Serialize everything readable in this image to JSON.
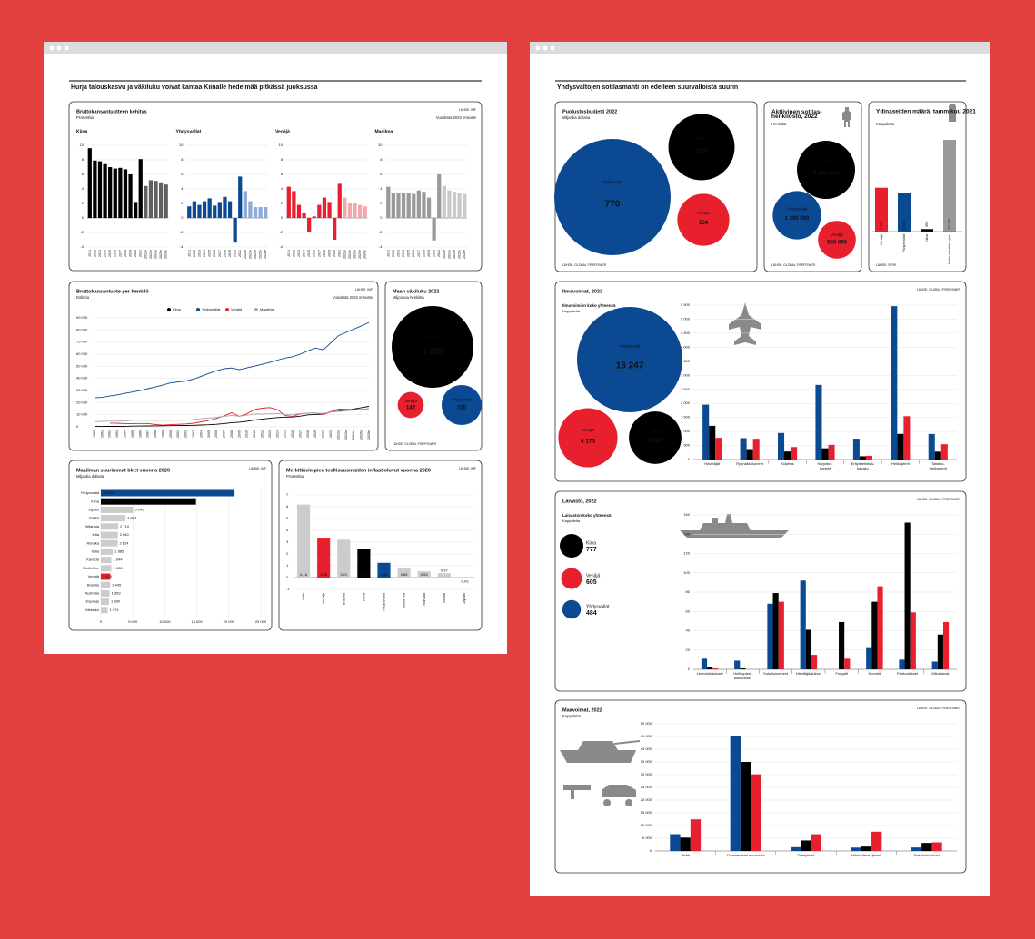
{
  "pages": [
    {
      "title": "Hurja talouskasvu ja väkiluku voivat kantaa Kiinalle hedelmää pitkässä juoksussa"
    },
    {
      "title": "Yhdysvaltojen sotilasmahti on edelleen suurvalloista suurin"
    }
  ],
  "chart_data": [
    {
      "type": "small-multiples-bar",
      "title": "Bruttokansantuotteen kehitys",
      "subtitle": "Prosenttia",
      "source": "LÄHDE: IMF",
      "note": "Vuodesta 2022 ennuste",
      "categories": [
        "2011",
        "2012",
        "2013",
        "2014",
        "2015",
        "2016",
        "2017",
        "2018",
        "2019",
        "2020",
        "2021",
        "2022e",
        "2023e",
        "2024e",
        "2025e",
        "2026e"
      ],
      "series": [
        {
          "name": "Kiina",
          "colors": [
            "#000000",
            "#000000",
            "#000000",
            "#000000",
            "#000000",
            "#000000",
            "#000000",
            "#000000",
            "#000000",
            "#000000",
            "#000000",
            "#606060",
            "#606060",
            "#606060",
            "#606060",
            "#606060"
          ],
          "values": [
            9.6,
            7.9,
            7.8,
            7.4,
            7.0,
            6.8,
            6.9,
            6.7,
            6.0,
            2.2,
            8.1,
            4.4,
            5.2,
            5.1,
            4.9,
            4.6
          ]
        },
        {
          "name": "Yhdysvallat",
          "colors": [
            "#0b4a92",
            "#0b4a92",
            "#0b4a92",
            "#0b4a92",
            "#0b4a92",
            "#0b4a92",
            "#0b4a92",
            "#0b4a92",
            "#0b4a92",
            "#0b4a92",
            "#0b4a92",
            "#8eaad6",
            "#8eaad6",
            "#8eaad6",
            "#8eaad6",
            "#8eaad6"
          ],
          "values": [
            1.6,
            2.3,
            1.8,
            2.3,
            2.7,
            1.7,
            2.2,
            2.9,
            2.3,
            -3.4,
            5.7,
            3.7,
            2.3,
            1.5,
            1.5,
            1.5
          ]
        },
        {
          "name": "Venäjä",
          "colors": [
            "#e8202e",
            "#e8202e",
            "#e8202e",
            "#e8202e",
            "#e8202e",
            "#e8202e",
            "#e8202e",
            "#e8202e",
            "#e8202e",
            "#e8202e",
            "#e8202e",
            "#f3a6ad",
            "#f3a6ad",
            "#f3a6ad",
            "#f3a6ad",
            "#f3a6ad"
          ],
          "values": [
            4.3,
            3.7,
            1.8,
            0.7,
            -2.0,
            0.2,
            1.8,
            2.8,
            2.2,
            -3.0,
            4.7,
            2.8,
            2.1,
            2.1,
            1.8,
            1.6
          ]
        },
        {
          "name": "Maailma",
          "colors": [
            "#9a9a9a",
            "#9a9a9a",
            "#9a9a9a",
            "#9a9a9a",
            "#9a9a9a",
            "#9a9a9a",
            "#9a9a9a",
            "#9a9a9a",
            "#9a9a9a",
            "#9a9a9a",
            "#9a9a9a",
            "#c9c9c9",
            "#c9c9c9",
            "#c9c9c9",
            "#c9c9c9",
            "#c9c9c9"
          ],
          "values": [
            4.3,
            3.5,
            3.4,
            3.5,
            3.4,
            3.3,
            3.8,
            3.6,
            2.8,
            -3.1,
            6.0,
            4.4,
            3.8,
            3.6,
            3.4,
            3.3
          ]
        }
      ],
      "ylim": [
        -4,
        10
      ],
      "yticks": [
        -4,
        -2,
        0,
        2,
        4,
        6,
        8,
        10
      ]
    },
    {
      "type": "line",
      "title": "Bruttokansantuote per henkilö",
      "subtitle": "Dollaria",
      "source": "LÄHDE: IMF",
      "note": "Vuodesta 2022 ennuste",
      "categories": [
        "1990",
        "1991",
        "1992",
        "1993",
        "1994",
        "1995",
        "1996",
        "1997",
        "1998",
        "1999",
        "2000",
        "2001",
        "2002",
        "2003",
        "2004",
        "2005",
        "2006",
        "2007",
        "2008",
        "2009",
        "2010",
        "2011",
        "2012",
        "2013",
        "2014",
        "2015",
        "2016",
        "2017",
        "2018",
        "2019",
        "2020",
        "2021",
        "2022e",
        "2023e",
        "2024e",
        "2025e",
        "2026e"
      ],
      "series": [
        {
          "name": "Kiina",
          "color": "#000000",
          "values": [
            320,
            330,
            370,
            380,
            470,
            610,
            710,
            780,
            830,
            870,
            960,
            1050,
            1150,
            1290,
            1510,
            1750,
            2100,
            2700,
            3470,
            3830,
            4550,
            5610,
            6300,
            7020,
            7640,
            8030,
            8080,
            8820,
            9900,
            10170,
            10500,
            12560,
            12990,
            13720,
            14700,
            15800,
            16900
          ]
        },
        {
          "name": "Yhdysvallat",
          "color": "#0b4a92",
          "values": [
            23900,
            24300,
            25400,
            26400,
            27700,
            28700,
            29900,
            31500,
            32900,
            34600,
            36300,
            37100,
            37900,
            39400,
            41700,
            44100,
            46300,
            48000,
            48600,
            47200,
            48700,
            50100,
            51700,
            53200,
            55100,
            56800,
            57900,
            60000,
            62800,
            65100,
            63500,
            69300,
            75200,
            78000,
            80600,
            83300,
            86200
          ]
        },
        {
          "name": "Venäjä",
          "color": "#e8202e",
          "values": [
            null,
            null,
            3100,
            3000,
            2700,
            2700,
            2800,
            2800,
            1900,
            1400,
            1800,
            2100,
            2400,
            3000,
            4100,
            5300,
            6900,
            9100,
            11600,
            8600,
            10700,
            14300,
            15400,
            15900,
            14100,
            9300,
            8700,
            10700,
            11300,
            11500,
            10200,
            12200,
            14700,
            14500,
            14300,
            14500,
            14800
          ]
        },
        {
          "name": "Maailma",
          "color": "#aaaaaa",
          "values": [
            4300,
            4500,
            4700,
            4700,
            4900,
            5400,
            5500,
            5400,
            5300,
            5400,
            5500,
            5400,
            5500,
            6100,
            6800,
            7300,
            7800,
            8700,
            9400,
            8800,
            9600,
            10500,
            10600,
            10800,
            11000,
            10300,
            10300,
            10900,
            11400,
            11400,
            11000,
            12200,
            12700,
            13200,
            13800,
            14400,
            15000
          ]
        }
      ],
      "ylim": [
        0,
        90000
      ],
      "yticks": [
        0,
        {
          "value": 10000,
          "label": "10 000"
        },
        {
          "value": 20000,
          "label": "20 000"
        },
        {
          "value": 30000,
          "label": "30 000"
        },
        {
          "value": 40000,
          "label": "40 000"
        },
        {
          "value": 50000,
          "label": "50 000"
        },
        {
          "value": 60000,
          "label": "60 000"
        },
        {
          "value": 70000,
          "label": "70 000"
        },
        {
          "value": 80000,
          "label": "80 000"
        },
        {
          "value": 90000,
          "label": "90 000"
        }
      ]
    },
    {
      "type": "bubble",
      "title": "Maan väkiluku 2022",
      "subtitle": "Miljoonaa henkilöä",
      "source": "LÄHDE: GLOBAL FIREPOWER",
      "categories": [
        "Kiina",
        "Venäjä",
        "Yhdysvallat"
      ],
      "values": [
        1398,
        142,
        335
      ],
      "value_labels": [
        "1 398",
        "142",
        "335"
      ],
      "colors": [
        "#000000",
        "#e8202e",
        "#0b4a92"
      ]
    },
    {
      "type": "hbar",
      "title": "Maailman suurimmat bkt:t vuonna 2020",
      "subtitle": "Miljardia dollaria",
      "source": "LÄHDE: IMF",
      "categories": [
        "Yhdysvallat",
        "Kiina",
        "Japani",
        "Saksa",
        "Britannia",
        "Intia",
        "Ranska",
        "Italia",
        "Kanada",
        "Etelä-Kor.",
        "Venäjä",
        "Brasilia",
        "Australia",
        "Espanja",
        "Meksiko"
      ],
      "values": [
        20894,
        14867,
        5045,
        3843,
        2710,
        2660,
        2624,
        1885,
        1644,
        1638,
        1479,
        1445,
        1359,
        1280,
        1074
      ],
      "value_labels": [
        "20 894",
        "14 867",
        "5 045",
        "3 843",
        "2 710",
        "2 660",
        "2 624",
        "1 885",
        "1 644",
        "1 638",
        "1 479",
        "1 445",
        "1 359",
        "1 280",
        "1 074"
      ],
      "colors": [
        "#0b4a92",
        "#000000",
        "#cccccc",
        "#cccccc",
        "#cccccc",
        "#cccccc",
        "#cccccc",
        "#cccccc",
        "#cccccc",
        "#cccccc",
        "#e8202e",
        "#cccccc",
        "#cccccc",
        "#cccccc",
        "#cccccc"
      ],
      "xlim": [
        0,
        25000
      ],
      "xticks": [
        0,
        {
          "value": 5000,
          "label": "5 000"
        },
        {
          "value": 10000,
          "label": "10 000"
        },
        {
          "value": 15000,
          "label": "15 000"
        },
        {
          "value": 20000,
          "label": "20 000"
        },
        {
          "value": 25000,
          "label": "25 000"
        }
      ]
    },
    {
      "type": "bar",
      "title": "Merkittävimpien teollisuusmaiden inflaatioluvut vuonna 2020",
      "subtitle": "Prosenttia",
      "source": "LÄHDE: IMF",
      "categories": [
        "Intia",
        "Venäjä",
        "Brasilia",
        "Kiina",
        "Yhdysvallat",
        "Britannia",
        "Ranska",
        "Saksa",
        "Japani"
      ],
      "values": [
        6.18,
        3.38,
        3.21,
        2.39,
        1.25,
        0.85,
        0.53,
        0.37,
        -0.03
      ],
      "value_labels": [
        "6,18",
        "3,38",
        "3,21",
        "2,39",
        "1,25",
        "0,85",
        "0,53",
        "0,37",
        "-0,03"
      ],
      "colors": [
        "#cccccc",
        "#e8202e",
        "#cccccc",
        "#000000",
        "#0b4a92",
        "#cccccc",
        "#cccccc",
        "#cccccc",
        "#cccccc"
      ],
      "ylim": [
        -1,
        7
      ],
      "yticks": [
        -1,
        0,
        1,
        2,
        3,
        4,
        5,
        6,
        7
      ]
    },
    {
      "type": "bubble",
      "title": "Puolustusbudjetti 2022",
      "subtitle": "Miljardia dollaria",
      "source": "LÄHDE: GLOBAL FIREPOWER",
      "categories": [
        "Yhdysvallat",
        "Kiina",
        "Venäjä"
      ],
      "values": [
        770,
        250,
        154
      ],
      "value_labels": [
        "770",
        "250",
        "154"
      ],
      "colors": [
        "#0b4a92",
        "#000000",
        "#e8202e"
      ]
    },
    {
      "type": "bubble",
      "title": "Aktiivinen sotilas-henkilöstö, 2022",
      "subtitle": "Henkilöä",
      "source": "LÄHDE: GLOBAL FIREPOWER",
      "categories": [
        "Kiina",
        "Yhdysvallat",
        "Venäjä"
      ],
      "values": [
        2000000,
        1390000,
        850000
      ],
      "value_labels": [
        "2 000 000",
        "1 390 000",
        "850 000"
      ],
      "colors": [
        "#000000",
        "#0b4a92",
        "#e8202e"
      ]
    },
    {
      "type": "vbar",
      "title": "Ydinaseiden määrä, tammikuu 2021",
      "subtitle": "Kappaletta",
      "source": "LÄHDE: SIPRI",
      "categories": [
        "Venäjä",
        "Yhdysvallat",
        "Kiina",
        "Koko maailma yht."
      ],
      "values": [
        6255,
        5550,
        350,
        13080
      ],
      "value_labels": [
        "6 255",
        "5 550",
        "350",
        "13 080"
      ],
      "colors": [
        "#e8202e",
        "#0b4a92",
        "#000000",
        "#999999"
      ]
    },
    {
      "type": "grouped-bar",
      "title": "Ilmavoimat, 2022",
      "source": "LÄHDE: GLOBAL FIREPOWER",
      "bubbles": {
        "title": "Ilmavoimien koko yhteensä",
        "subtitle": "Kappaletta",
        "categories": [
          "Yhdysvallat",
          "Venäjä",
          "Kiina"
        ],
        "values": [
          13247,
          4173,
          3285
        ],
        "value_labels": [
          "13 247",
          "4 173",
          "3 285"
        ],
        "colors": [
          "#0b4a92",
          "#e8202e",
          "#000000"
        ]
      },
      "categories": [
        "Hävittäjät",
        "Rynnäkkökoneet",
        "Kuljetus",
        "Harjoitus-koneet",
        "Erityistehtävä-kalusto",
        "Helikopterit",
        "Taistelu-helikopterit"
      ],
      "series": [
        {
          "color": "#0b4a92",
          "values": [
            1956,
            761,
            945,
            2659,
            742,
            5463,
            910
          ]
        },
        {
          "color": "#000000",
          "values": [
            1200,
            371,
            286,
            399,
            115,
            913,
            281
          ]
        },
        {
          "color": "#e8202e",
          "values": [
            772,
            739,
            445,
            522,
            132,
            1543,
            544
          ]
        }
      ],
      "ylim": [
        0,
        5500
      ],
      "yticks": [
        0,
        500,
        {
          "value": 1000,
          "label": "1 000"
        },
        {
          "value": 1500,
          "label": "1 500"
        },
        {
          "value": 2000,
          "label": "2 000"
        },
        {
          "value": 2500,
          "label": "2 500"
        },
        {
          "value": 3000,
          "label": "3 000"
        },
        {
          "value": 3500,
          "label": "3 500"
        },
        {
          "value": 4000,
          "label": "4 000"
        },
        {
          "value": 4500,
          "label": "4 500"
        },
        {
          "value": 5000,
          "label": "5 000"
        },
        {
          "value": 5500,
          "label": "5 500"
        }
      ]
    },
    {
      "type": "grouped-bar",
      "title": "Laivasto, 2022",
      "source": "LÄHDE: GLOBAL FIREPOWER",
      "bubbles": {
        "title": "Laivaston koko yhteensä",
        "subtitle": "Kappaletta",
        "categories": [
          "Kiina",
          "Venäjä",
          "Yhdysvallat"
        ],
        "values": [
          777,
          605,
          484
        ],
        "value_labels": [
          "777",
          "605",
          "484"
        ],
        "colors": [
          "#000000",
          "#e8202e",
          "#0b4a92"
        ]
      },
      "categories": [
        "Lentotukialukset",
        "Helikopteri-tukialukset",
        "Sukellusveneet",
        "Hävittäjäalukset",
        "Fregatit",
        "Korvetit",
        "Partioalukset",
        "Miinalaivat"
      ],
      "series": [
        {
          "color": "#0b4a92",
          "values": [
            11,
            9,
            68,
            92,
            0,
            22,
            10,
            8
          ]
        },
        {
          "color": "#000000",
          "values": [
            2,
            1,
            79,
            41,
            49,
            70,
            152,
            36
          ]
        },
        {
          "color": "#e8202e",
          "values": [
            1,
            0,
            70,
            15,
            11,
            86,
            59,
            49
          ]
        }
      ],
      "ylim": [
        0,
        160
      ],
      "yticks": [
        0,
        20,
        40,
        60,
        80,
        100,
        120,
        140,
        160
      ]
    },
    {
      "type": "grouped-bar",
      "title": "Maavoimat, 2022",
      "subtitle": "Kappaletta",
      "source": "LÄHDE: GLOBAL FIREPOWER",
      "categories": [
        "Tankit",
        "Panssaroidut ajoneuvot",
        "Telatykistö",
        "Liikuteltava tykistö",
        "Raketinheittimet"
      ],
      "series": [
        {
          "color": "#0b4a92",
          "values": [
            6612,
            45193,
            1498,
            1339,
            1366
          ]
        },
        {
          "color": "#000000",
          "values": [
            5250,
            35000,
            4120,
            1734,
            3160
          ]
        },
        {
          "color": "#e8202e",
          "values": [
            12420,
            30122,
            6574,
            7571,
            3391
          ]
        }
      ],
      "ylim": [
        0,
        50000
      ],
      "yticks": [
        0,
        {
          "value": 5000,
          "label": "5 000"
        },
        {
          "value": 10000,
          "label": "10 000"
        },
        {
          "value": 15000,
          "label": "15 000"
        },
        {
          "value": 20000,
          "label": "20 000"
        },
        {
          "value": 25000,
          "label": "25 000"
        },
        {
          "value": 30000,
          "label": "30 000"
        },
        {
          "value": 35000,
          "label": "35 000"
        },
        {
          "value": 40000,
          "label": "40 000"
        },
        {
          "value": 45000,
          "label": "45 000"
        },
        {
          "value": 50000,
          "label": "50 000"
        }
      ]
    }
  ]
}
